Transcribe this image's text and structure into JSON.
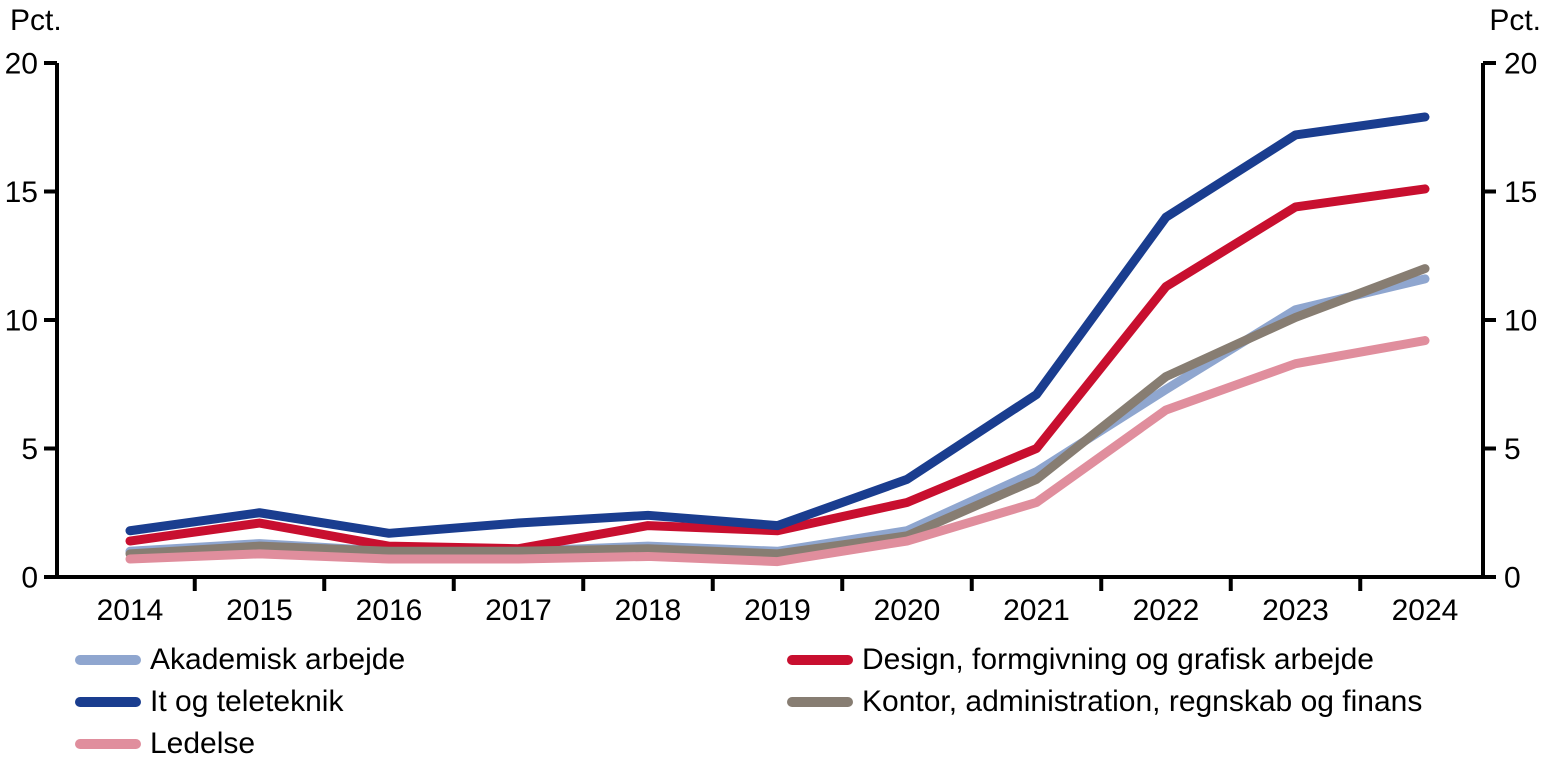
{
  "chart_data": {
    "type": "line",
    "title": "",
    "ylabel_left": "Pct.",
    "ylabel_right": "Pct.",
    "categories": [
      "2014",
      "2015",
      "2016",
      "2017",
      "2018",
      "2019",
      "2020",
      "2021",
      "2022",
      "2023",
      "2024"
    ],
    "ylim": [
      0,
      20
    ],
    "yticks": [
      0,
      5,
      10,
      15,
      20
    ],
    "grid": false,
    "x_tick_style": "between-categories",
    "legend_position": "bottom-two-columns",
    "axis_color": "#000000",
    "series": [
      {
        "name": "Akademisk arbejde",
        "color": "#8FA6CF",
        "legend_column": 1,
        "legend_row": 1,
        "values": [
          1.0,
          1.3,
          1.0,
          1.0,
          1.2,
          1.0,
          1.8,
          4.1,
          7.3,
          10.4,
          11.6
        ]
      },
      {
        "name": "Design, formgivning og grafisk arbejde",
        "color": "#C80F2F",
        "legend_column": 2,
        "legend_row": 1,
        "values": [
          1.4,
          2.1,
          1.2,
          1.1,
          2.0,
          1.8,
          2.9,
          5.0,
          11.3,
          14.4,
          15.1
        ]
      },
      {
        "name": "It og teleteknik",
        "color": "#1A3D8F",
        "legend_column": 1,
        "legend_row": 2,
        "values": [
          1.8,
          2.5,
          1.7,
          2.1,
          2.4,
          2.0,
          3.8,
          7.1,
          14.0,
          17.2,
          17.9
        ]
      },
      {
        "name": "Kontor, administration, regnskab og finans",
        "color": "#877D72",
        "legend_column": 2,
        "legend_row": 2,
        "values": [
          0.9,
          1.2,
          1.0,
          1.0,
          1.1,
          0.9,
          1.6,
          3.8,
          7.8,
          10.1,
          12.0
        ]
      },
      {
        "name": "Ledelse",
        "color": "#E08E9D",
        "legend_column": 1,
        "legend_row": 3,
        "values": [
          0.7,
          0.9,
          0.7,
          0.7,
          0.8,
          0.6,
          1.4,
          2.9,
          6.5,
          8.3,
          9.2
        ]
      }
    ]
  }
}
